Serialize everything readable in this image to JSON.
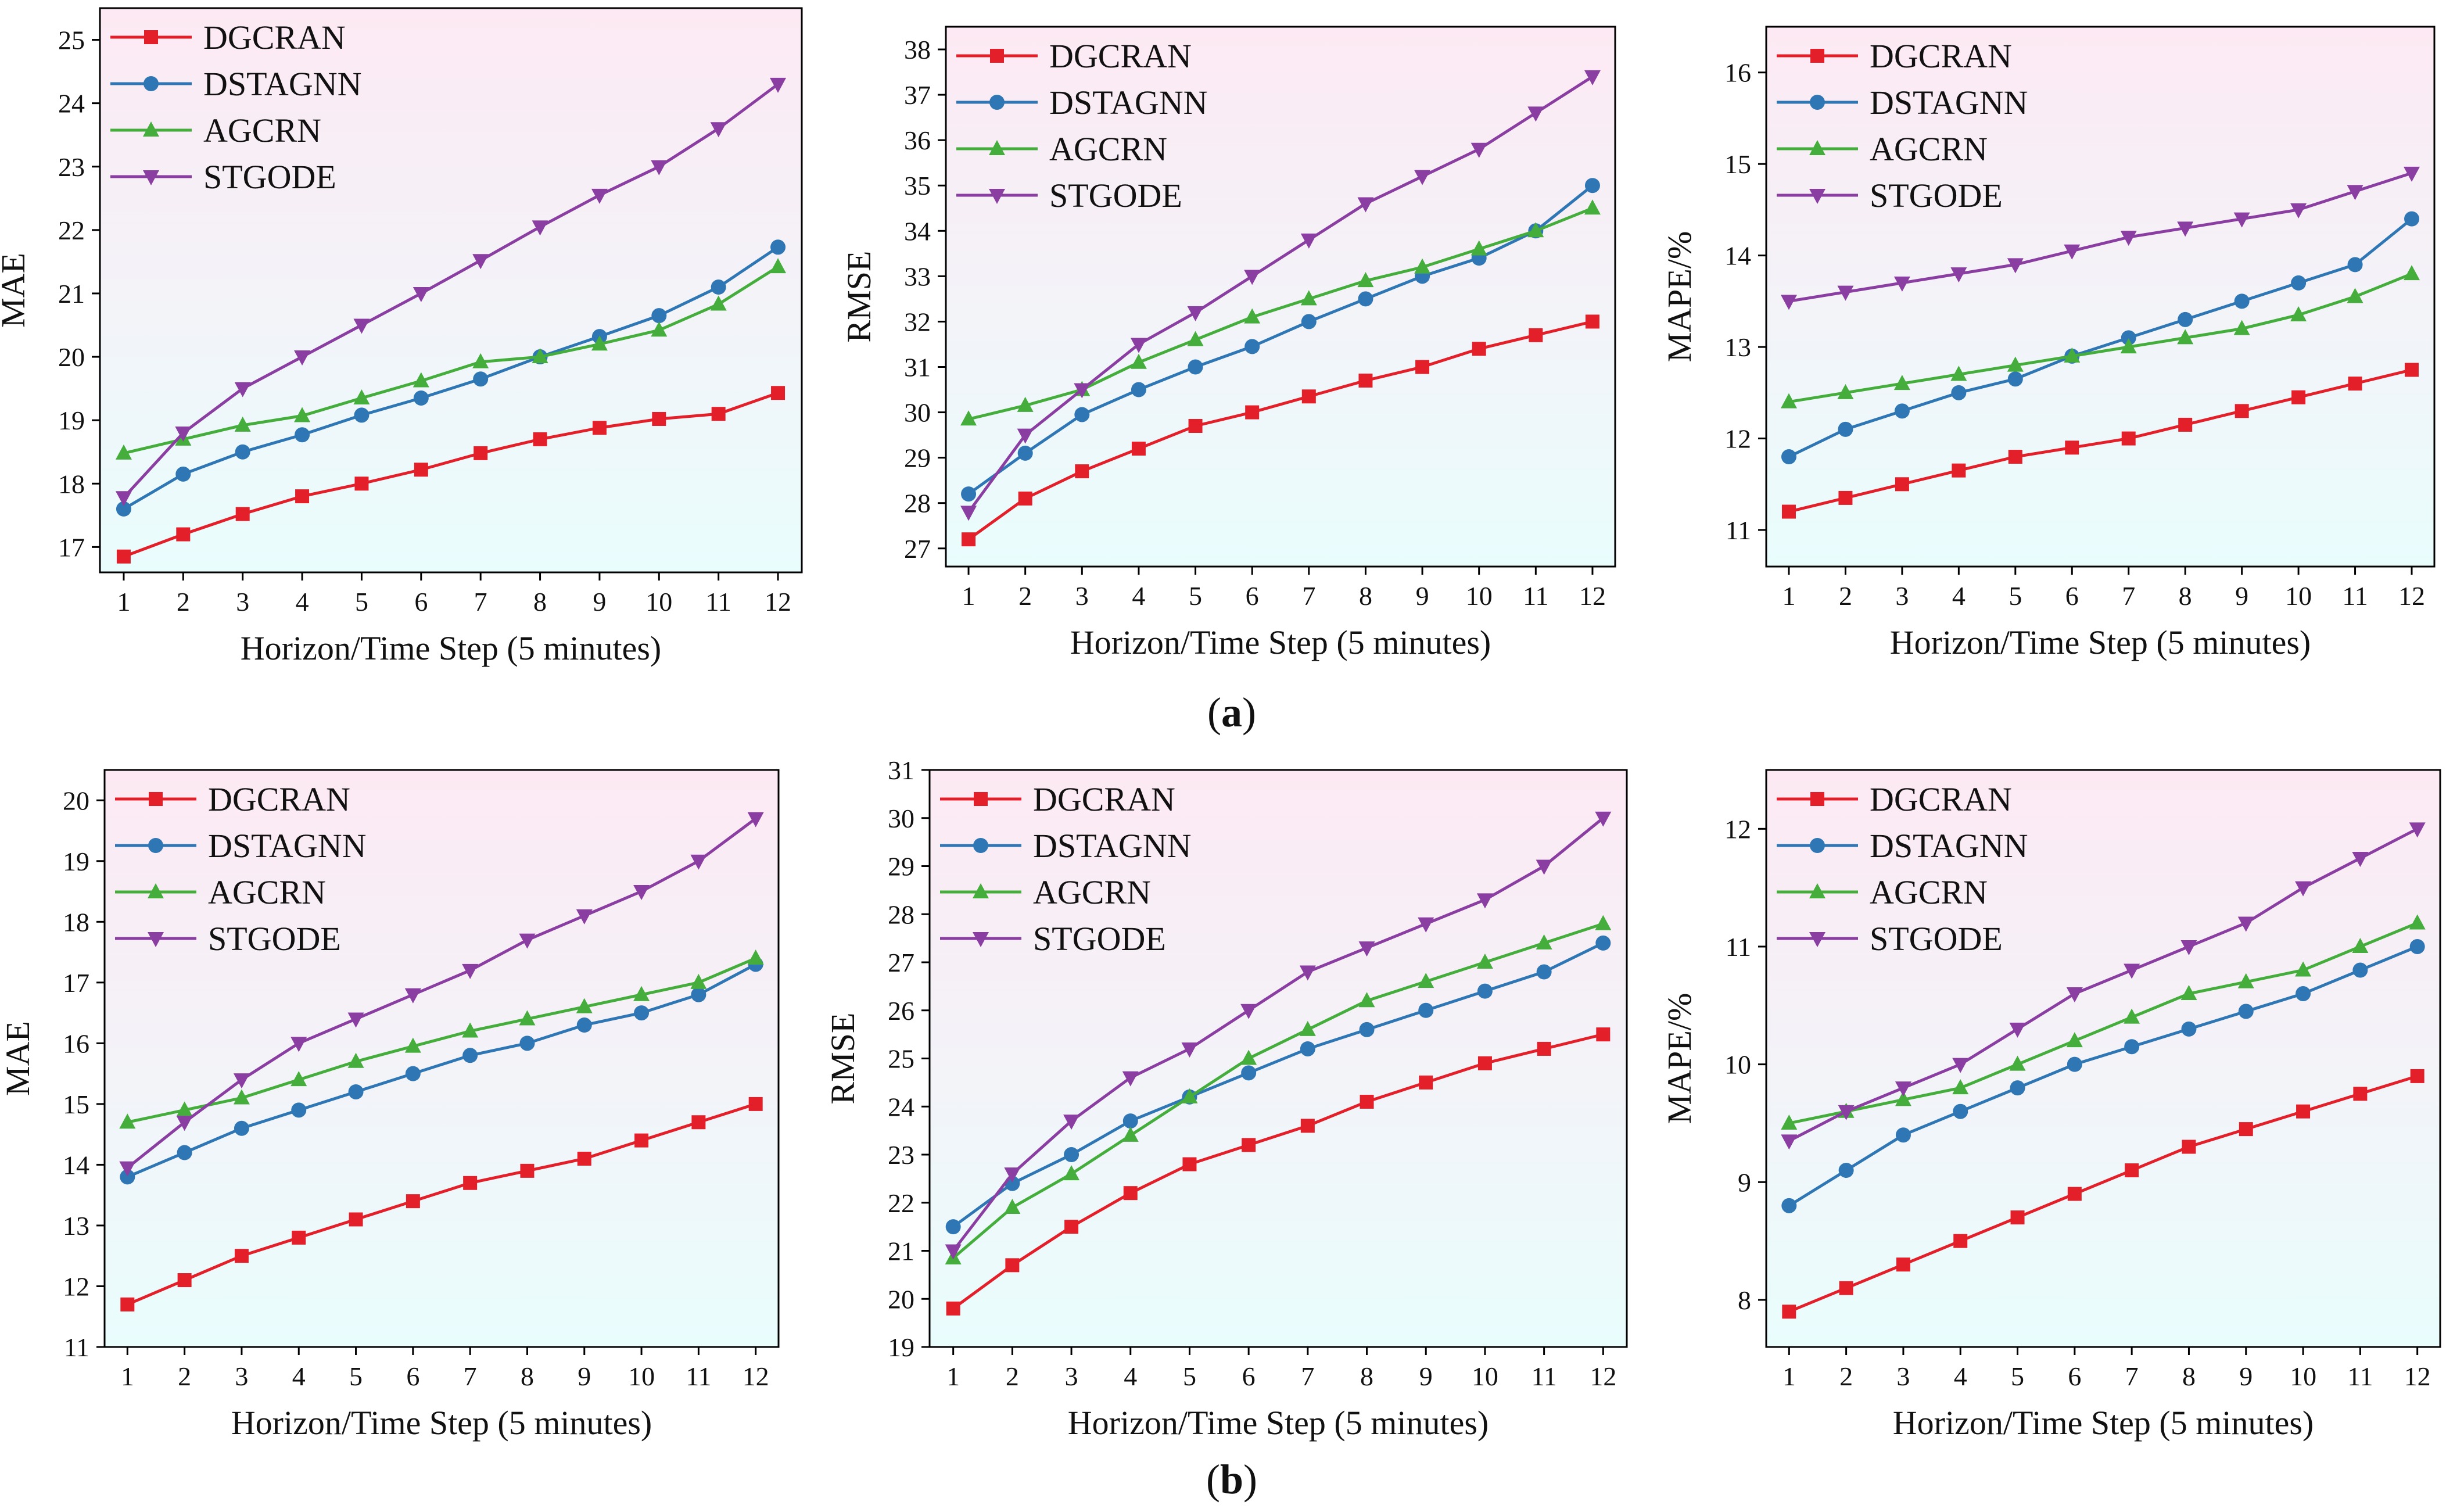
{
  "figure": {
    "caption_a": "a",
    "caption_b": "b",
    "series_colors": {
      "DGCRAN": "#e3202a",
      "DSTAGNN": "#2f76b5",
      "AGCRN": "#44ad3c",
      "STGODE": "#8a3ea1"
    },
    "series_markers": {
      "DGCRAN": "square",
      "DSTAGNN": "circle",
      "AGCRN": "triangle-up",
      "STGODE": "triangle-down"
    },
    "background_gradient": {
      "top": "#fde9f3",
      "bottom": "#e9fdfd"
    }
  },
  "chart_data": [
    {
      "id": "a-mae",
      "panel": "a",
      "type": "line",
      "xlabel": "Horizon/Time Step (5 minutes)",
      "ylabel": "MAE",
      "x": [
        1,
        2,
        3,
        4,
        5,
        6,
        7,
        8,
        9,
        10,
        11,
        12
      ],
      "xlim": [
        0.6,
        12.4
      ],
      "ylim": [
        16.6,
        25.5
      ],
      "yticks": [
        17,
        18,
        19,
        20,
        21,
        22,
        23,
        24,
        25
      ],
      "legend": "top-left",
      "series": [
        {
          "name": "DGCRAN",
          "values": [
            16.85,
            17.2,
            17.52,
            17.8,
            18.0,
            18.22,
            18.48,
            18.7,
            18.88,
            19.02,
            19.1,
            19.43
          ]
        },
        {
          "name": "DSTAGNN",
          "values": [
            17.6,
            18.15,
            18.5,
            18.77,
            19.08,
            19.35,
            19.65,
            20.0,
            20.32,
            20.65,
            21.1,
            21.73
          ]
        },
        {
          "name": "AGCRN",
          "values": [
            18.48,
            18.7,
            18.92,
            19.07,
            19.35,
            19.62,
            19.92,
            20.0,
            20.2,
            20.42,
            20.83,
            21.42
          ]
        },
        {
          "name": "STGODE",
          "values": [
            17.78,
            18.8,
            19.5,
            20.0,
            20.5,
            21.0,
            21.52,
            22.05,
            22.55,
            23.0,
            23.6,
            24.3
          ]
        }
      ]
    },
    {
      "id": "a-rmse",
      "panel": "a",
      "type": "line",
      "xlabel": "Horizon/Time Step (5 minutes)",
      "ylabel": "RMSE",
      "x": [
        1,
        2,
        3,
        4,
        5,
        6,
        7,
        8,
        9,
        10,
        11,
        12
      ],
      "xlim": [
        0.6,
        12.4
      ],
      "ylim": [
        26.6,
        38.5
      ],
      "yticks": [
        27,
        28,
        29,
        30,
        31,
        32,
        33,
        34,
        35,
        36,
        37,
        38
      ],
      "legend": "top-left",
      "series": [
        {
          "name": "DGCRAN",
          "values": [
            27.2,
            28.1,
            28.7,
            29.2,
            29.7,
            30.0,
            30.35,
            30.7,
            31.0,
            31.4,
            31.7,
            32.0
          ]
        },
        {
          "name": "DSTAGNN",
          "values": [
            28.2,
            29.1,
            29.95,
            30.5,
            31.0,
            31.45,
            32.0,
            32.5,
            33.0,
            33.4,
            34.0,
            35.0
          ]
        },
        {
          "name": "AGCRN",
          "values": [
            29.85,
            30.15,
            30.5,
            31.1,
            31.6,
            32.1,
            32.5,
            32.9,
            33.2,
            33.6,
            34.0,
            34.5
          ]
        },
        {
          "name": "STGODE",
          "values": [
            27.8,
            29.5,
            30.5,
            31.5,
            32.2,
            33.0,
            33.8,
            34.6,
            35.2,
            35.8,
            36.6,
            37.4
          ]
        }
      ]
    },
    {
      "id": "a-mape",
      "panel": "a",
      "type": "line",
      "xlabel": "Horizon/Time Step (5 minutes)",
      "ylabel": "MAPE/%",
      "x": [
        1,
        2,
        3,
        4,
        5,
        6,
        7,
        8,
        9,
        10,
        11,
        12
      ],
      "xlim": [
        0.6,
        12.4
      ],
      "ylim": [
        10.6,
        16.5
      ],
      "yticks": [
        11,
        12,
        13,
        14,
        15,
        16
      ],
      "legend": "top-left",
      "series": [
        {
          "name": "DGCRAN",
          "values": [
            11.2,
            11.35,
            11.5,
            11.65,
            11.8,
            11.9,
            12.0,
            12.15,
            12.3,
            12.45,
            12.6,
            12.75
          ]
        },
        {
          "name": "DSTAGNN",
          "values": [
            11.8,
            12.1,
            12.3,
            12.5,
            12.65,
            12.9,
            13.1,
            13.3,
            13.5,
            13.7,
            13.9,
            14.4
          ]
        },
        {
          "name": "AGCRN",
          "values": [
            12.4,
            12.5,
            12.6,
            12.7,
            12.8,
            12.9,
            13.0,
            13.1,
            13.2,
            13.35,
            13.55,
            13.8
          ]
        },
        {
          "name": "STGODE",
          "values": [
            13.5,
            13.6,
            13.7,
            13.8,
            13.9,
            14.05,
            14.2,
            14.3,
            14.4,
            14.5,
            14.7,
            14.9
          ]
        }
      ]
    },
    {
      "id": "b-mae",
      "panel": "b",
      "type": "line",
      "xlabel": "Horizon/Time Step (5 minutes)",
      "ylabel": "MAE",
      "x": [
        1,
        2,
        3,
        4,
        5,
        6,
        7,
        8,
        9,
        10,
        11,
        12
      ],
      "xlim": [
        0.6,
        12.4
      ],
      "ylim": [
        11.0,
        20.5
      ],
      "yticks": [
        11,
        12,
        13,
        14,
        15,
        16,
        17,
        18,
        19,
        20
      ],
      "legend": "top-left",
      "series": [
        {
          "name": "DGCRAN",
          "values": [
            11.7,
            12.1,
            12.5,
            12.8,
            13.1,
            13.4,
            13.7,
            13.9,
            14.1,
            14.4,
            14.7,
            15.0
          ]
        },
        {
          "name": "DSTAGNN",
          "values": [
            13.8,
            14.2,
            14.6,
            14.9,
            15.2,
            15.5,
            15.8,
            16.0,
            16.3,
            16.5,
            16.8,
            17.3
          ]
        },
        {
          "name": "AGCRN",
          "values": [
            14.7,
            14.9,
            15.1,
            15.4,
            15.7,
            15.95,
            16.2,
            16.4,
            16.6,
            16.8,
            17.0,
            17.4
          ]
        },
        {
          "name": "STGODE",
          "values": [
            13.95,
            14.7,
            15.4,
            16.0,
            16.4,
            16.8,
            17.2,
            17.7,
            18.1,
            18.5,
            19.0,
            19.7
          ]
        }
      ]
    },
    {
      "id": "b-rmse",
      "panel": "b",
      "type": "line",
      "xlabel": "Horizon/Time Step (5 minutes)",
      "ylabel": "RMSE",
      "x": [
        1,
        2,
        3,
        4,
        5,
        6,
        7,
        8,
        9,
        10,
        11,
        12
      ],
      "xlim": [
        0.6,
        12.4
      ],
      "ylim": [
        19.0,
        31.0
      ],
      "yticks": [
        19,
        20,
        21,
        22,
        23,
        24,
        25,
        26,
        27,
        28,
        29,
        30,
        31
      ],
      "legend": "top-left",
      "series": [
        {
          "name": "DGCRAN",
          "values": [
            19.8,
            20.7,
            21.5,
            22.2,
            22.8,
            23.2,
            23.6,
            24.1,
            24.5,
            24.9,
            25.2,
            25.5
          ]
        },
        {
          "name": "DSTAGNN",
          "values": [
            21.5,
            22.4,
            23.0,
            23.7,
            24.2,
            24.7,
            25.2,
            25.6,
            26.0,
            26.4,
            26.8,
            27.4
          ]
        },
        {
          "name": "AGCRN",
          "values": [
            20.85,
            21.9,
            22.6,
            23.4,
            24.2,
            25.0,
            25.6,
            26.2,
            26.6,
            27.0,
            27.4,
            27.8
          ]
        },
        {
          "name": "STGODE",
          "values": [
            21.0,
            22.6,
            23.7,
            24.6,
            25.2,
            26.0,
            26.8,
            27.3,
            27.8,
            28.3,
            29.0,
            30.0
          ]
        }
      ]
    },
    {
      "id": "b-mape",
      "panel": "b",
      "type": "line",
      "xlabel": "Horizon/Time Step (5 minutes)",
      "ylabel": "MAPE/%",
      "x": [
        1,
        2,
        3,
        4,
        5,
        6,
        7,
        8,
        9,
        10,
        11,
        12
      ],
      "xlim": [
        0.6,
        12.4
      ],
      "ylim": [
        7.6,
        12.5
      ],
      "yticks": [
        8,
        9,
        10,
        11,
        12
      ],
      "legend": "top-left",
      "series": [
        {
          "name": "DGCRAN",
          "values": [
            7.9,
            8.1,
            8.3,
            8.5,
            8.7,
            8.9,
            9.1,
            9.3,
            9.45,
            9.6,
            9.75,
            9.9
          ]
        },
        {
          "name": "DSTAGNN",
          "values": [
            8.8,
            9.1,
            9.4,
            9.6,
            9.8,
            10.0,
            10.15,
            10.3,
            10.45,
            10.6,
            10.8,
            11.0
          ]
        },
        {
          "name": "AGCRN",
          "values": [
            9.5,
            9.6,
            9.7,
            9.8,
            10.0,
            10.2,
            10.4,
            10.6,
            10.7,
            10.8,
            11.0,
            11.2
          ]
        },
        {
          "name": "STGODE",
          "values": [
            9.35,
            9.6,
            9.8,
            10.0,
            10.3,
            10.6,
            10.8,
            11.0,
            11.2,
            11.5,
            11.75,
            12.0
          ]
        }
      ]
    }
  ]
}
